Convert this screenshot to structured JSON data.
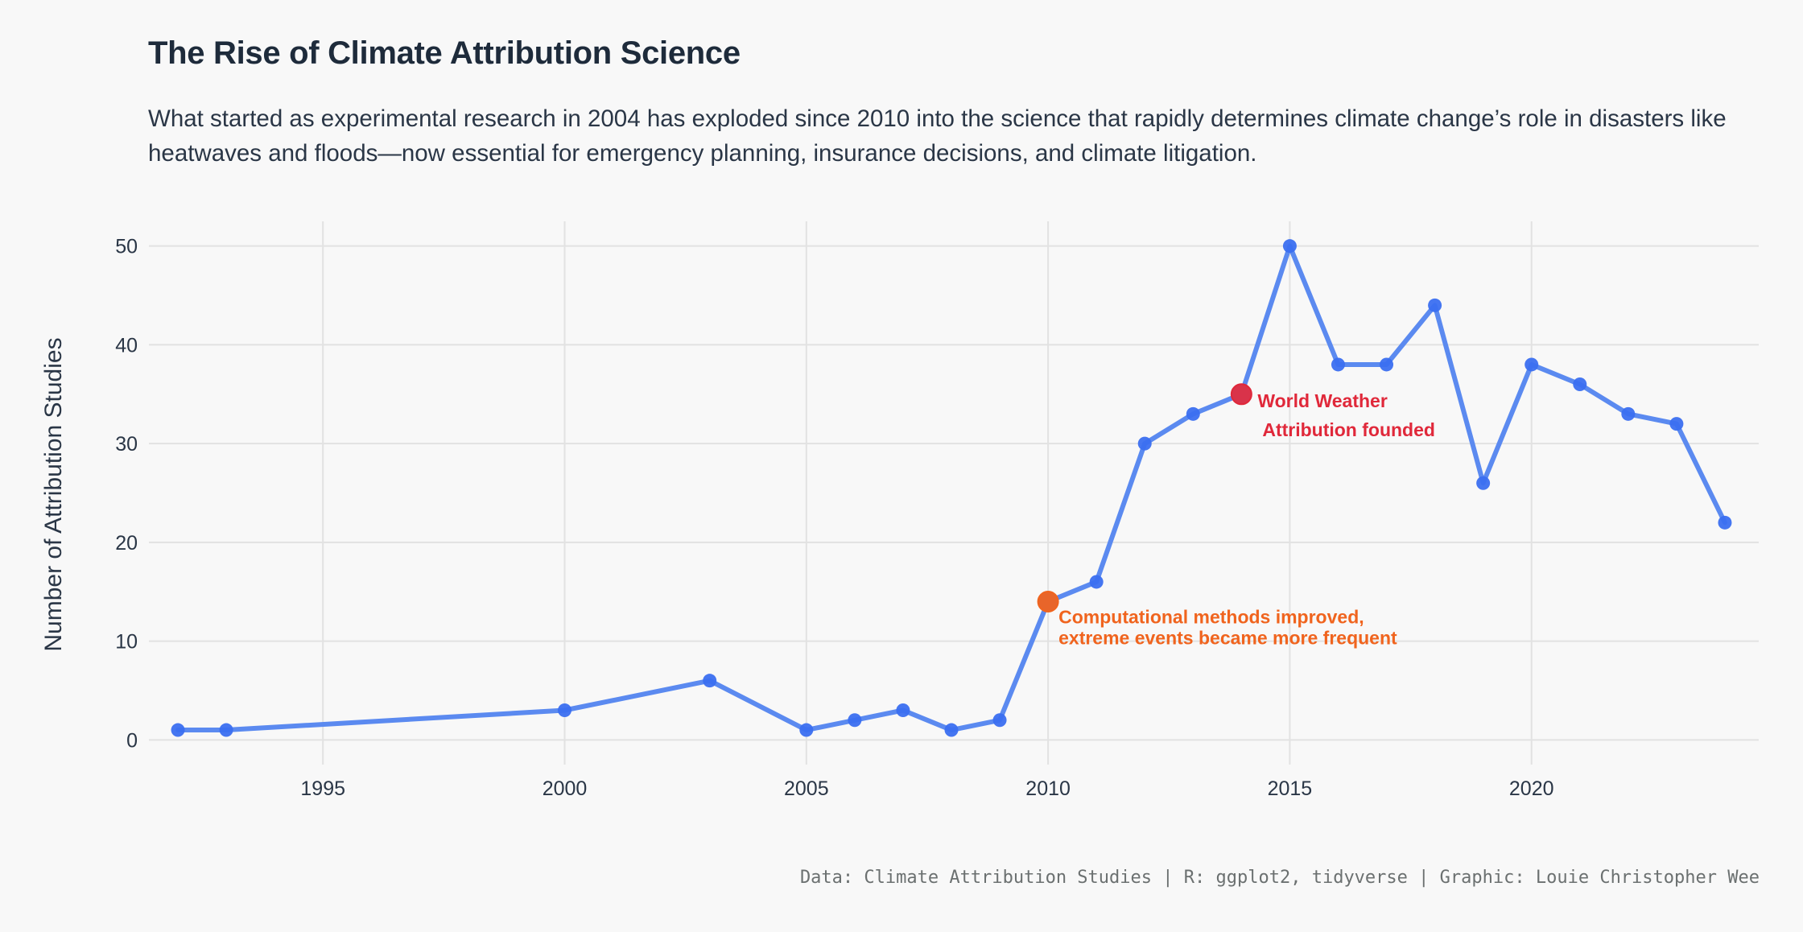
{
  "title": "The Rise of Climate Attribution Science",
  "subtitle": "What started as experimental research in 2004 has exploded since 2010 into the science that rapidly determines climate change’s role in disasters like heatwaves and floods—now essential for emergency planning, insurance decisions, and climate litigation.",
  "caption": "Data: Climate Attribution Studies | R: ggplot2, tidyverse | Graphic: Louie Christopher Wee",
  "colors": {
    "background": "#f8f8f8",
    "line": "#5b8af0",
    "point": "#3b6ff0",
    "grid": "#e2e2e2",
    "annotation_red": "#e0283a",
    "annotation_orange": "#f0641e"
  },
  "chart_data": {
    "type": "line",
    "title": "The Rise of Climate Attribution Science",
    "xlabel": "",
    "ylabel": "Number of Attribution Studies",
    "x": [
      1992,
      1993,
      2000,
      2003,
      2005,
      2006,
      2007,
      2008,
      2009,
      2010,
      2011,
      2012,
      2013,
      2014,
      2015,
      2016,
      2017,
      2018,
      2019,
      2020,
      2021,
      2022,
      2023,
      2024
    ],
    "series": [
      {
        "name": "Attribution studies",
        "values": [
          1,
          1,
          3,
          6,
          1,
          2,
          3,
          1,
          2,
          14,
          16,
          30,
          33,
          35,
          50,
          38,
          38,
          44,
          26,
          38,
          36,
          33,
          32,
          22
        ]
      }
    ],
    "xlim": [
      1991.4,
      2024.7
    ],
    "ylim": [
      -2.5,
      52.5
    ],
    "x_ticks": [
      1995,
      2000,
      2005,
      2010,
      2015,
      2020
    ],
    "x_tick_labels": [
      "1995",
      "2000",
      "2005",
      "2010",
      "2015",
      "2020"
    ],
    "y_ticks": [
      0,
      10,
      20,
      30,
      40,
      50
    ],
    "y_tick_labels": [
      "0",
      "10",
      "20",
      "30",
      "40",
      "50"
    ],
    "grid": true,
    "legend": "none",
    "annotations": [
      {
        "x": 2010,
        "y": 14,
        "lines": [
          "Computational methods improved,",
          "extreme events became more frequent"
        ],
        "color": "#f0641e",
        "point_color": "#e8652a"
      },
      {
        "x": 2014,
        "y": 35,
        "lines": [
          "World Weather",
          "Attribution founded"
        ],
        "color": "#e0283a",
        "point_color": "#d9334a"
      }
    ]
  }
}
